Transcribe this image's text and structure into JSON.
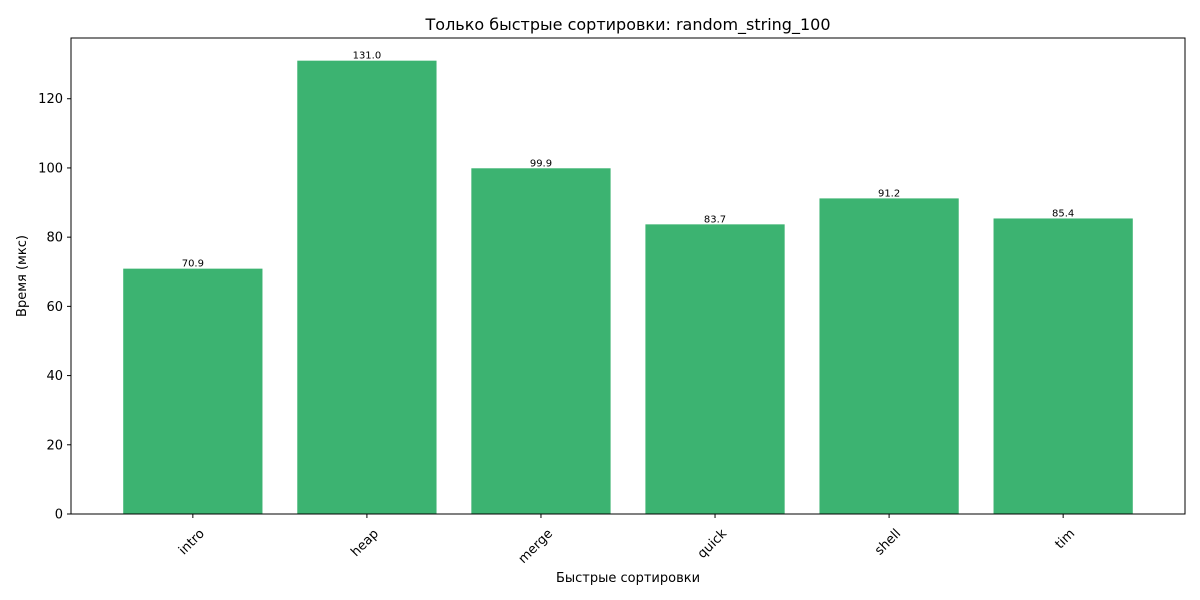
{
  "chart_data": {
    "type": "bar",
    "title": "Только быстрые сортировки: random_string_100",
    "xlabel": "Быстрые сортировки",
    "ylabel": "Время (мкс)",
    "categories": [
      "intro",
      "heap",
      "merge",
      "quick",
      "shell",
      "tim"
    ],
    "values": [
      70.9,
      131.0,
      99.9,
      83.7,
      91.2,
      85.4
    ],
    "value_labels": [
      "70.9",
      "131.0",
      "99.9",
      "83.7",
      "91.2",
      "85.4"
    ],
    "ylim": [
      0,
      137.55
    ],
    "yticks": [
      0,
      20,
      40,
      60,
      80,
      100,
      120
    ],
    "bar_color": "#3cb371",
    "grid": false,
    "xtick_rotation_deg": 45
  }
}
